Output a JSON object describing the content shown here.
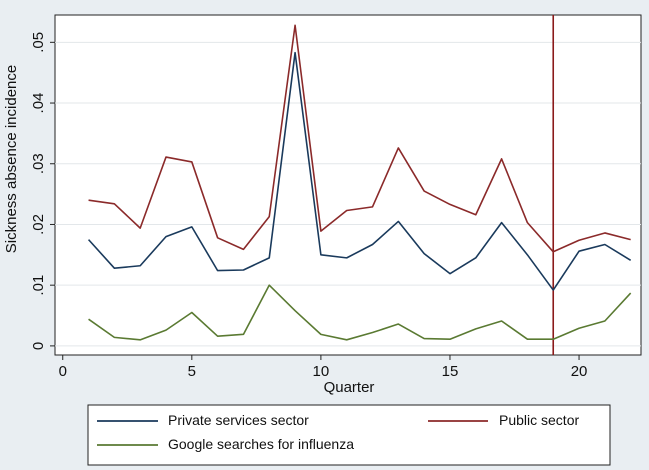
{
  "chart_data": {
    "type": "line",
    "xlabel": "Quarter",
    "ylabel": "Sickness absence incidence",
    "xlim": [
      -0.3,
      22.4
    ],
    "ylim": [
      -0.0015,
      0.0545
    ],
    "x_ticks": [
      0,
      5,
      10,
      15,
      20
    ],
    "x_tick_labels": [
      "0",
      "5",
      "10",
      "15",
      "20"
    ],
    "y_ticks": [
      0,
      0.01,
      0.02,
      0.03,
      0.04,
      0.05
    ],
    "y_tick_labels": [
      "0",
      ".01",
      ".02",
      ".03",
      ".04",
      ".05"
    ],
    "grid": "horizontal",
    "legend_position": "bottom",
    "x": [
      1,
      2,
      3,
      4,
      5,
      6,
      7,
      8,
      9,
      10,
      11,
      12,
      13,
      14,
      15,
      16,
      17,
      18,
      19,
      20,
      21,
      22
    ],
    "series": [
      {
        "name": "Private services sector",
        "color": "#1a3a5c",
        "values": [
          0.0175,
          0.0128,
          0.0132,
          0.018,
          0.0196,
          0.0124,
          0.0125,
          0.0145,
          0.0483,
          0.015,
          0.0145,
          0.0167,
          0.0205,
          0.0152,
          0.0119,
          0.0145,
          0.0203,
          0.015,
          0.0092,
          0.0156,
          0.0167,
          0.0141
        ]
      },
      {
        "name": "Public sector",
        "color": "#8b2a2a",
        "values": [
          0.024,
          0.0234,
          0.0194,
          0.0311,
          0.0303,
          0.0178,
          0.0159,
          0.0213,
          0.0528,
          0.0189,
          0.0223,
          0.0229,
          0.0326,
          0.0255,
          0.0233,
          0.0216,
          0.0308,
          0.0203,
          0.0155,
          0.0174,
          0.0186,
          0.0175
        ]
      },
      {
        "name": "Google searches for influenza",
        "color": "#5a7a32",
        "values": [
          0.0044,
          0.0014,
          0.001,
          0.0026,
          0.0055,
          0.0016,
          0.0019,
          0.01,
          0.0058,
          0.0019,
          0.001,
          0.0022,
          0.0036,
          0.0012,
          0.0011,
          0.0028,
          0.0041,
          0.0011,
          0.0011,
          0.0029,
          0.0041,
          0.0087
        ]
      }
    ],
    "reference_line": {
      "x": 19,
      "color": "#8b1a1a"
    }
  }
}
